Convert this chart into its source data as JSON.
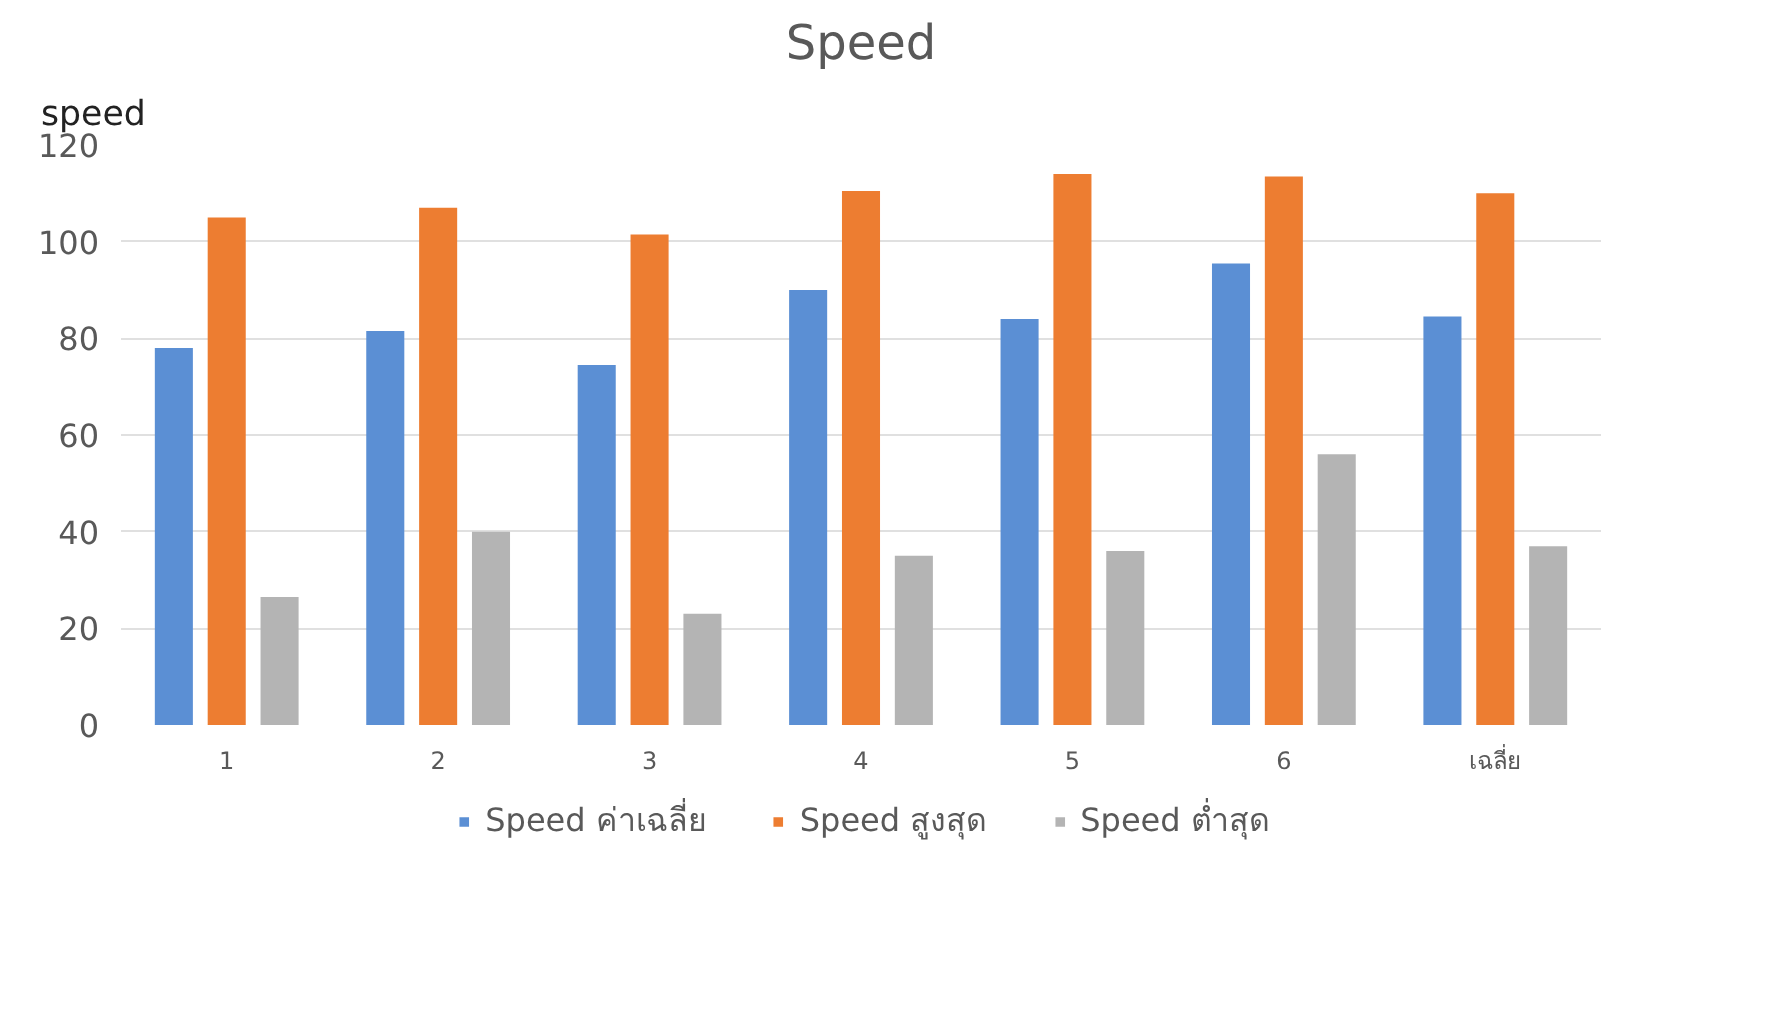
{
  "chart_data": {
    "type": "bar",
    "title": "Speed",
    "ylabel": "speed",
    "categories": [
      "1",
      "2",
      "3",
      "4",
      "5",
      "6",
      "เฉลี่ย"
    ],
    "series": [
      {
        "name": "Speed ค่าเฉลี่ย",
        "color": "#5b8fd4",
        "values": [
          78,
          81.5,
          74.5,
          90,
          84,
          95.5,
          84.5
        ]
      },
      {
        "name": "Speed สูงสุด",
        "color": "#ed7d31",
        "values": [
          105,
          107,
          101.5,
          110.5,
          114,
          113.5,
          110
        ]
      },
      {
        "name": "Speed ต่ำสุด",
        "color": "#b4b4b4",
        "values": [
          26.5,
          40,
          23,
          35,
          36,
          56,
          37
        ]
      }
    ],
    "ylim": [
      0,
      120
    ],
    "yticks": [
      0,
      20,
      40,
      60,
      80,
      100,
      120
    ],
    "grid": "y",
    "legend": "bottom"
  }
}
